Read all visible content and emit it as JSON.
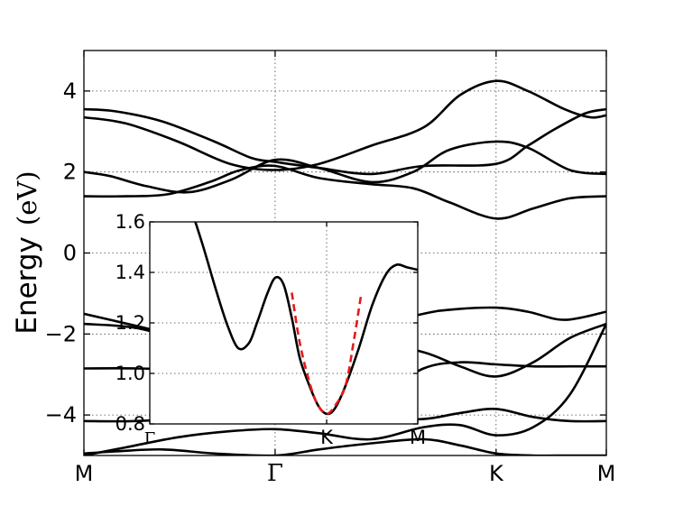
{
  "chart_data": [
    {
      "type": "line",
      "title": "",
      "xlabel": "",
      "ylabel": "Energy",
      "ylabel_unit": "(eV)",
      "ylim": [
        -5,
        5
      ],
      "grid": true,
      "x_ticks": [
        {
          "pos": 0.0,
          "label": "M"
        },
        {
          "pos": 0.366,
          "label": "Γ"
        },
        {
          "pos": 0.789,
          "label": "K"
        },
        {
          "pos": 1.0,
          "label": "M"
        }
      ],
      "y_ticks": [
        -4,
        -2,
        0,
        2,
        4
      ],
      "y_tick_labels": [
        "−4",
        "−2",
        "0",
        "2",
        "4"
      ],
      "series": [
        {
          "x": [
            0,
            0.06,
            0.15,
            0.25,
            0.32,
            0.366,
            0.45,
            0.55,
            0.65,
            0.789,
            0.85,
            0.9,
            0.96,
            1.0
          ],
          "y": [
            3.55,
            3.5,
            3.25,
            2.75,
            2.35,
            2.25,
            2.1,
            1.95,
            2.15,
            2.2,
            2.65,
            3.05,
            3.45,
            3.55
          ]
        },
        {
          "x": [
            0,
            0.08,
            0.18,
            0.28,
            0.366,
            0.45,
            0.55,
            0.65,
            0.72,
            0.789,
            0.85,
            0.92,
            0.97,
            1.0
          ],
          "y": [
            3.35,
            3.2,
            2.75,
            2.2,
            2.05,
            2.2,
            2.65,
            3.1,
            3.9,
            4.25,
            4.0,
            3.55,
            3.35,
            3.4
          ]
        },
        {
          "x": [
            0,
            0.05,
            0.12,
            0.2,
            0.28,
            0.366,
            0.45,
            0.55,
            0.63,
            0.7,
            0.789,
            0.85,
            0.93,
            1.0
          ],
          "y": [
            2.0,
            1.9,
            1.65,
            1.5,
            1.8,
            2.3,
            2.1,
            1.75,
            2.0,
            2.55,
            2.75,
            2.6,
            2.05,
            1.95
          ]
        },
        {
          "x": [
            0,
            0.08,
            0.16,
            0.24,
            0.3,
            0.366,
            0.45,
            0.55,
            0.63,
            0.7,
            0.789,
            0.86,
            0.93,
            1.0
          ],
          "y": [
            1.4,
            1.4,
            1.45,
            1.75,
            2.05,
            2.15,
            1.85,
            1.7,
            1.6,
            1.25,
            0.85,
            1.1,
            1.35,
            1.4
          ]
        },
        {
          "x": [
            0,
            0.1,
            0.2,
            0.3,
            0.366,
            0.45,
            0.55,
            0.65,
            0.7,
            0.789,
            0.85,
            0.92,
            1.0
          ],
          "y": [
            -1.5,
            -1.8,
            -2.1,
            -2.3,
            -2.35,
            -2.1,
            -1.8,
            -1.5,
            -1.4,
            -1.35,
            -1.45,
            -1.65,
            -1.45
          ]
        },
        {
          "x": [
            0,
            0.1,
            0.2,
            0.3,
            0.366,
            0.45,
            0.55,
            0.65,
            0.72,
            0.789,
            0.86,
            0.93,
            1.0
          ],
          "y": [
            -1.75,
            -1.85,
            -2.2,
            -2.55,
            -2.6,
            -2.4,
            -2.2,
            -2.45,
            -2.8,
            -3.05,
            -2.7,
            -2.1,
            -1.75
          ]
        },
        {
          "x": [
            0,
            0.1,
            0.2,
            0.3,
            0.366,
            0.45,
            0.55,
            0.65,
            0.72,
            0.789,
            0.86,
            0.93,
            1.0
          ],
          "y": [
            -2.85,
            -2.85,
            -2.9,
            -3.0,
            -3.05,
            -3.2,
            -3.55,
            -2.85,
            -2.7,
            -2.75,
            -2.8,
            -2.8,
            -2.8
          ]
        },
        {
          "x": [
            0,
            0.1,
            0.2,
            0.3,
            0.366,
            0.45,
            0.55,
            0.65,
            0.72,
            0.789,
            0.86,
            0.93,
            1.0
          ],
          "y": [
            -4.15,
            -4.15,
            -4.05,
            -3.85,
            -3.7,
            -3.9,
            -4.1,
            -4.1,
            -3.95,
            -3.85,
            -4.05,
            -4.15,
            -4.15
          ]
        },
        {
          "x": [
            0,
            0.08,
            0.18,
            0.28,
            0.366,
            0.45,
            0.55,
            0.65,
            0.72,
            0.789,
            0.86,
            0.93,
            1.0
          ],
          "y": [
            -5.0,
            -4.8,
            -4.55,
            -4.4,
            -4.35,
            -4.45,
            -4.6,
            -4.3,
            -4.25,
            -4.5,
            -4.3,
            -3.5,
            -1.75
          ]
        },
        {
          "x": [
            0,
            0.06,
            0.15,
            0.25,
            0.366,
            0.45,
            0.55,
            0.65,
            0.72,
            0.789,
            0.86,
            0.93,
            1.0
          ],
          "y": [
            -4.95,
            -4.9,
            -4.85,
            -4.95,
            -5.0,
            -4.85,
            -4.7,
            -4.6,
            -4.75,
            -4.95,
            -5.0,
            -5.0,
            -5.0
          ]
        }
      ]
    },
    {
      "type": "line",
      "title": "",
      "xlabel": "",
      "ylabel": "",
      "ylim": [
        0.8,
        1.6
      ],
      "grid": true,
      "x_ticks": [
        {
          "pos": 0.0,
          "label": "Γ"
        },
        {
          "pos": 0.66,
          "label": "K"
        },
        {
          "pos": 1.0,
          "label": "M"
        }
      ],
      "y_ticks": [
        0.8,
        1.0,
        1.2,
        1.4,
        1.6
      ],
      "y_tick_labels": [
        "0.8",
        "1.0",
        "1.2",
        "1.4",
        "1.6"
      ],
      "series": [
        {
          "x": [
            0.17,
            0.2,
            0.25,
            0.29,
            0.33,
            0.37,
            0.4,
            0.44,
            0.47,
            0.5,
            0.53,
            0.56,
            0.6,
            0.63,
            0.66,
            0.69,
            0.73,
            0.78,
            0.83,
            0.88,
            0.92,
            0.96,
            1.0
          ],
          "y": [
            1.6,
            1.5,
            1.32,
            1.19,
            1.1,
            1.12,
            1.2,
            1.32,
            1.38,
            1.35,
            1.22,
            1.06,
            0.94,
            0.87,
            0.84,
            0.86,
            0.95,
            1.1,
            1.27,
            1.39,
            1.43,
            1.42,
            1.41
          ]
        },
        {
          "x": [
            0.53,
            0.56,
            0.6,
            0.63,
            0.66,
            0.69,
            0.73,
            0.76,
            0.79
          ],
          "y": [
            1.32,
            1.12,
            0.95,
            0.87,
            0.84,
            0.87,
            0.95,
            1.12,
            1.32
          ],
          "style": "dashed",
          "color": "#e41a1c"
        }
      ]
    }
  ]
}
